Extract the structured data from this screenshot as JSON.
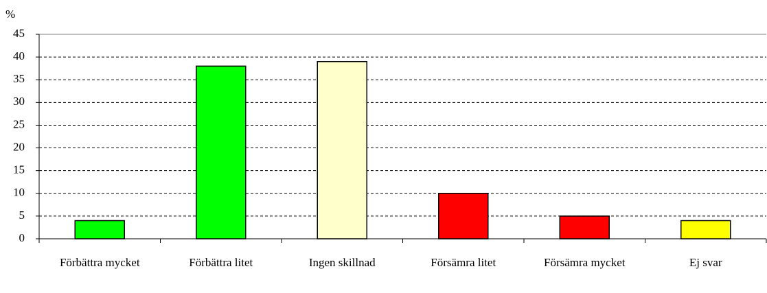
{
  "chart_data": {
    "type": "bar",
    "y_label": "%",
    "categories": [
      "Förbättra mycket",
      "Förbättra litet",
      "Ingen skillnad",
      "Försämra litet",
      "Försämra mycket",
      "Ej svar"
    ],
    "values": [
      4,
      38,
      39,
      10,
      5,
      4
    ],
    "colors": [
      "#00ff00",
      "#00ff00",
      "#ffffcc",
      "#ff0000",
      "#ff0000",
      "#ffff00"
    ],
    "ylim": [
      0,
      45
    ],
    "yticks": [
      0,
      5,
      10,
      15,
      20,
      25,
      30,
      35,
      40,
      45
    ],
    "grid": true
  }
}
